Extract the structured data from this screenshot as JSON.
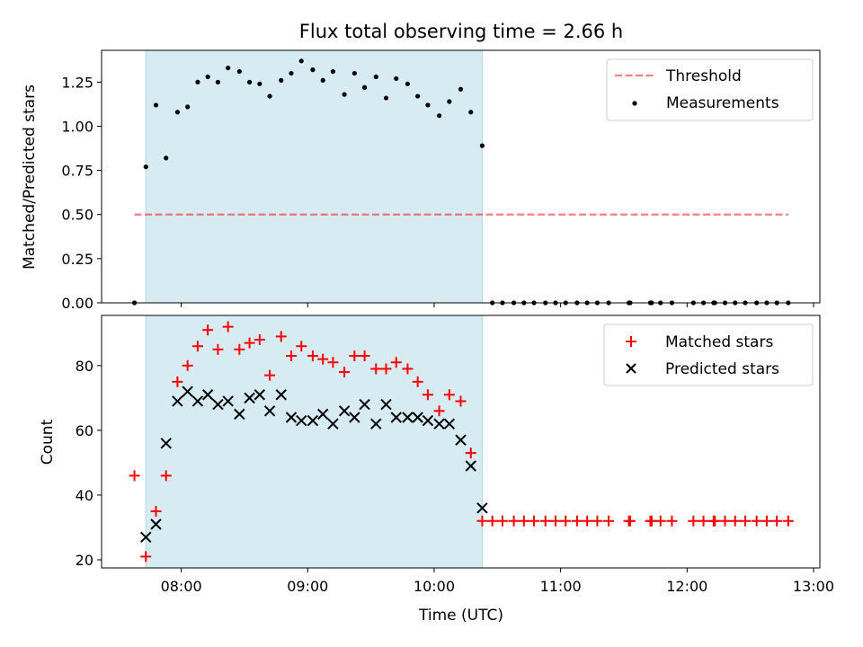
{
  "title": "Flux total observing time = 2.66 h",
  "colors": {
    "span": "#add8e6",
    "threshold": "#ff0000",
    "matched": "#ff0000",
    "predicted": "#000000",
    "measurement": "#000000"
  },
  "chart_data": [
    {
      "type": "scatter",
      "title": "Flux total observing time = 2.66 h",
      "ylabel": "Matched/Predicted stars",
      "xlabel": "",
      "xlim": [
        7.37,
        13.05
      ],
      "ylim": [
        0.0,
        1.43
      ],
      "yticks": [
        0.0,
        0.25,
        0.5,
        0.75,
        1.0,
        1.25
      ],
      "ytick_labels": [
        "0.00",
        "0.25",
        "0.50",
        "0.75",
        "1.00",
        "1.25"
      ],
      "shaded_span": [
        7.72,
        10.38
      ],
      "threshold": {
        "name": "Threshold",
        "y": 0.5,
        "x": [
          7.63,
          12.8
        ]
      },
      "legend_position": "upper right",
      "series": [
        {
          "name": "Measurements",
          "marker": "dot",
          "points": [
            [
              7.63,
              0.0
            ],
            [
              7.72,
              0.77
            ],
            [
              7.8,
              1.12
            ],
            [
              7.88,
              0.82
            ],
            [
              7.97,
              1.08
            ],
            [
              8.05,
              1.11
            ],
            [
              8.13,
              1.25
            ],
            [
              8.21,
              1.28
            ],
            [
              8.29,
              1.25
            ],
            [
              8.37,
              1.33
            ],
            [
              8.46,
              1.31
            ],
            [
              8.54,
              1.25
            ],
            [
              8.62,
              1.24
            ],
            [
              8.7,
              1.17
            ],
            [
              8.79,
              1.26
            ],
            [
              8.87,
              1.3
            ],
            [
              8.95,
              1.37
            ],
            [
              9.04,
              1.32
            ],
            [
              9.12,
              1.26
            ],
            [
              9.2,
              1.31
            ],
            [
              9.29,
              1.18
            ],
            [
              9.37,
              1.3
            ],
            [
              9.45,
              1.22
            ],
            [
              9.54,
              1.28
            ],
            [
              9.62,
              1.16
            ],
            [
              9.7,
              1.27
            ],
            [
              9.79,
              1.24
            ],
            [
              9.87,
              1.17
            ],
            [
              9.95,
              1.12
            ],
            [
              10.04,
              1.06
            ],
            [
              10.12,
              1.14
            ],
            [
              10.21,
              1.21
            ],
            [
              10.29,
              1.08
            ],
            [
              10.38,
              0.89
            ],
            [
              10.46,
              0.0
            ],
            [
              10.54,
              0.0
            ],
            [
              10.63,
              0.0
            ],
            [
              10.71,
              0.0
            ],
            [
              10.79,
              0.0
            ],
            [
              10.88,
              0.0
            ],
            [
              10.96,
              0.0
            ],
            [
              11.04,
              0.0
            ],
            [
              11.13,
              0.0
            ],
            [
              11.21,
              0.0
            ],
            [
              11.29,
              0.0
            ],
            [
              11.38,
              0.0
            ],
            [
              11.54,
              0.0
            ],
            [
              11.55,
              0.0
            ],
            [
              11.71,
              0.0
            ],
            [
              11.72,
              0.0
            ],
            [
              11.79,
              0.0
            ],
            [
              11.88,
              0.0
            ],
            [
              12.05,
              0.0
            ],
            [
              12.13,
              0.0
            ],
            [
              12.21,
              0.0
            ],
            [
              12.22,
              0.0
            ],
            [
              12.3,
              0.0
            ],
            [
              12.38,
              0.0
            ],
            [
              12.46,
              0.0
            ],
            [
              12.55,
              0.0
            ],
            [
              12.63,
              0.0
            ],
            [
              12.71,
              0.0
            ],
            [
              12.8,
              0.0
            ]
          ]
        }
      ]
    },
    {
      "type": "scatter",
      "title": "",
      "xlabel": "Time (UTC)",
      "ylabel": "Count",
      "xlim": [
        7.37,
        13.05
      ],
      "ylim": [
        17.5,
        95.5
      ],
      "yticks": [
        20,
        40,
        60,
        80
      ],
      "ytick_labels": [
        "20",
        "40",
        "60",
        "80"
      ],
      "xticks": [
        8,
        9,
        10,
        11,
        12,
        13
      ],
      "xtick_labels": [
        "08:00",
        "09:00",
        "10:00",
        "11:00",
        "12:00",
        "13:00"
      ],
      "shaded_span": [
        7.72,
        10.38
      ],
      "legend_position": "upper right",
      "series": [
        {
          "name": "Matched stars",
          "marker": "plus",
          "points": [
            [
              7.63,
              46
            ],
            [
              7.72,
              21
            ],
            [
              7.8,
              35
            ],
            [
              7.88,
              46
            ],
            [
              7.97,
              75
            ],
            [
              8.05,
              80
            ],
            [
              8.13,
              86
            ],
            [
              8.21,
              91
            ],
            [
              8.29,
              85
            ],
            [
              8.37,
              92
            ],
            [
              8.46,
              85
            ],
            [
              8.54,
              87
            ],
            [
              8.62,
              88
            ],
            [
              8.7,
              77
            ],
            [
              8.79,
              89
            ],
            [
              8.87,
              83
            ],
            [
              8.95,
              86
            ],
            [
              9.04,
              83
            ],
            [
              9.12,
              82
            ],
            [
              9.2,
              81
            ],
            [
              9.29,
              78
            ],
            [
              9.37,
              83
            ],
            [
              9.45,
              83
            ],
            [
              9.54,
              79
            ],
            [
              9.62,
              79
            ],
            [
              9.7,
              81
            ],
            [
              9.79,
              79
            ],
            [
              9.87,
              75
            ],
            [
              9.95,
              71
            ],
            [
              10.04,
              66
            ],
            [
              10.12,
              71
            ],
            [
              10.21,
              69
            ],
            [
              10.29,
              53
            ],
            [
              10.38,
              32
            ],
            [
              10.46,
              32
            ],
            [
              10.54,
              32
            ],
            [
              10.63,
              32
            ],
            [
              10.71,
              32
            ],
            [
              10.79,
              32
            ],
            [
              10.88,
              32
            ],
            [
              10.96,
              32
            ],
            [
              11.04,
              32
            ],
            [
              11.13,
              32
            ],
            [
              11.21,
              32
            ],
            [
              11.29,
              32
            ],
            [
              11.38,
              32
            ],
            [
              11.54,
              32
            ],
            [
              11.55,
              32
            ],
            [
              11.71,
              32
            ],
            [
              11.72,
              32
            ],
            [
              11.79,
              32
            ],
            [
              11.88,
              32
            ],
            [
              12.05,
              32
            ],
            [
              12.13,
              32
            ],
            [
              12.21,
              32
            ],
            [
              12.22,
              32
            ],
            [
              12.3,
              32
            ],
            [
              12.38,
              32
            ],
            [
              12.46,
              32
            ],
            [
              12.55,
              32
            ],
            [
              12.63,
              32
            ],
            [
              12.71,
              32
            ],
            [
              12.8,
              32
            ]
          ]
        },
        {
          "name": "Predicted stars",
          "marker": "x",
          "points": [
            [
              7.72,
              27
            ],
            [
              7.8,
              31
            ],
            [
              7.88,
              56
            ],
            [
              7.97,
              69
            ],
            [
              8.05,
              72
            ],
            [
              8.13,
              69
            ],
            [
              8.21,
              71
            ],
            [
              8.29,
              68
            ],
            [
              8.37,
              69
            ],
            [
              8.46,
              65
            ],
            [
              8.54,
              70
            ],
            [
              8.62,
              71
            ],
            [
              8.7,
              66
            ],
            [
              8.79,
              71
            ],
            [
              8.87,
              64
            ],
            [
              8.95,
              63
            ],
            [
              9.04,
              63
            ],
            [
              9.12,
              65
            ],
            [
              9.2,
              62
            ],
            [
              9.29,
              66
            ],
            [
              9.37,
              64
            ],
            [
              9.45,
              68
            ],
            [
              9.54,
              62
            ],
            [
              9.62,
              68
            ],
            [
              9.7,
              64
            ],
            [
              9.79,
              64
            ],
            [
              9.87,
              64
            ],
            [
              9.95,
              63
            ],
            [
              10.04,
              62
            ],
            [
              10.12,
              62
            ],
            [
              10.21,
              57
            ],
            [
              10.29,
              49
            ],
            [
              10.38,
              36
            ]
          ]
        }
      ]
    }
  ]
}
